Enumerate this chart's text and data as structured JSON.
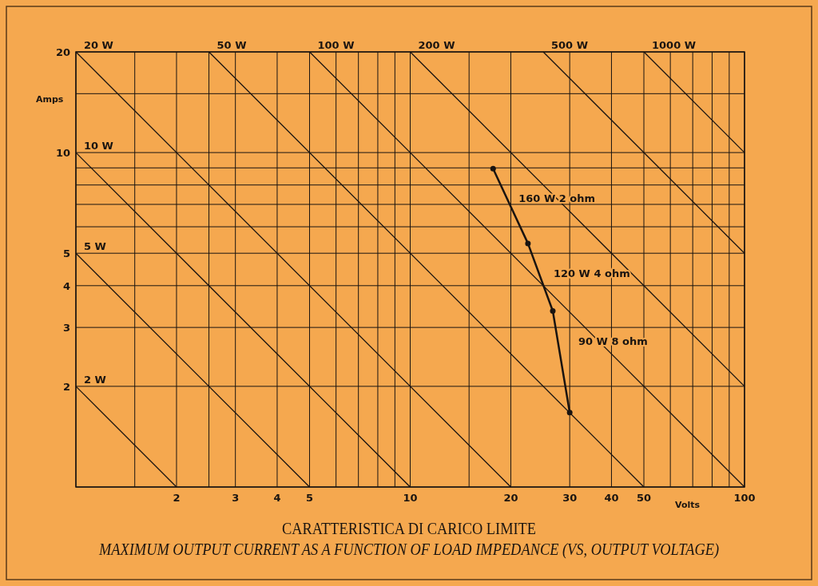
{
  "chart_data": {
    "type": "line",
    "title": "CARATTERISTICA DI CARICO LIMITE",
    "subtitle": "MAXIMUM OUTPUT CURRENT AS A FUNCTION OF LOAD IMPEDANCE (VS, OUTPUT VOLTAGE)",
    "xlabel": "Volts",
    "ylabel": "Amps",
    "log": "xy",
    "grid": true,
    "xlim": [
      1,
      100
    ],
    "ylim": [
      1,
      20
    ],
    "xticks": [
      {
        "value": 1,
        "label": null
      },
      {
        "value": 1.5,
        "label": null
      },
      2,
      {
        "value": 2.5,
        "label": null
      },
      3,
      4,
      5,
      {
        "value": 6,
        "label": null
      },
      {
        "value": 7,
        "label": null
      },
      {
        "value": 8,
        "label": null
      },
      {
        "value": 9,
        "label": null
      },
      10,
      {
        "value": 15,
        "label": null
      },
      20,
      30,
      40,
      50,
      {
        "value": 60,
        "label": null
      },
      {
        "value": 70,
        "label": null
      },
      {
        "value": 80,
        "label": null
      },
      {
        "value": 90,
        "label": null
      },
      100
    ],
    "yticks": [
      {
        "value": 1,
        "label": null
      },
      2,
      3,
      4,
      5,
      {
        "value": 6,
        "label": null
      },
      {
        "value": 7,
        "label": null
      },
      {
        "value": 8,
        "label": null
      },
      {
        "value": 9,
        "label": null
      },
      10,
      {
        "value": 15,
        "label": null
      },
      20
    ],
    "series": [
      {
        "name": "2 W",
        "color": "#1a1410",
        "x": [
          1,
          2
        ],
        "values": [
          2,
          1
        ]
      },
      {
        "name": "5 W",
        "color": "#1a1410",
        "x": [
          1,
          5
        ],
        "values": [
          5,
          1
        ]
      },
      {
        "name": "10 W",
        "color": "#1a1410",
        "x": [
          1,
          10
        ],
        "values": [
          10,
          1
        ]
      },
      {
        "name": "20 W",
        "color": "#1a1410",
        "x": [
          1,
          20
        ],
        "values": [
          20,
          1
        ]
      },
      {
        "name": "50 W",
        "color": "#1a1410",
        "x": [
          2.5,
          50
        ],
        "values": [
          20,
          1
        ]
      },
      {
        "name": "100 W",
        "color": "#1a1410",
        "x": [
          5,
          100
        ],
        "values": [
          20,
          1
        ]
      },
      {
        "name": "200 W",
        "color": "#1a1410",
        "x": [
          10,
          100
        ],
        "values": [
          20,
          2
        ]
      },
      {
        "name": "500 W",
        "color": "#1a1410",
        "x": [
          25,
          100
        ],
        "values": [
          20,
          5
        ]
      },
      {
        "name": "1000 W",
        "color": "#1a1410",
        "x": [
          50,
          100
        ],
        "values": [
          20,
          10
        ]
      },
      {
        "color": "#1a1410",
        "x": [
          17.7,
          22.5,
          26.7,
          30
        ],
        "values": [
          8.95,
          5.35,
          3.36,
          1.67
        ],
        "marker": "circle"
      }
    ],
    "annotations": [
      "160 W  2 ohm",
      "120 W  4 ohm",
      "90 W  8 ohm"
    ]
  }
}
